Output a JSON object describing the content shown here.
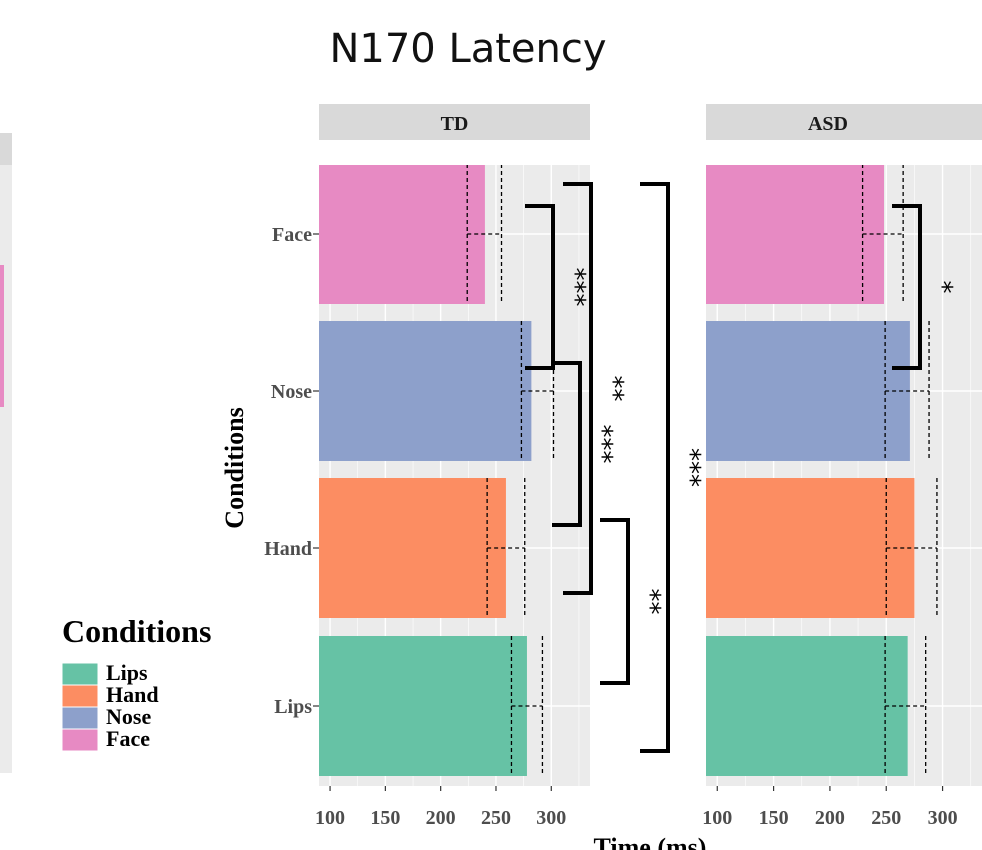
{
  "chart_data": {
    "type": "bar",
    "title": "N170 Latency",
    "xlabel": "Time (ms)",
    "ylabel": "Conditions",
    "xlim": [
      90,
      335
    ],
    "x_ticks": [
      "100",
      "150",
      "200",
      "250",
      "300"
    ],
    "categories": [
      "Face",
      "Nose",
      "Hand",
      "Lips"
    ],
    "legend": {
      "title": "Conditions",
      "placement": "left",
      "entries": [
        {
          "label": "Lips",
          "color": "#66c2a5"
        },
        {
          "label": "Hand",
          "color": "#fc8d62"
        },
        {
          "label": "Nose",
          "color": "#8da0cb"
        },
        {
          "label": "Face",
          "color": "#e78ac3"
        }
      ]
    },
    "colors": {
      "Face": "#e78ac3",
      "Nose": "#8da0cb",
      "Hand": "#fc8d62",
      "Lips": "#66c2a5"
    },
    "panels": [
      {
        "label": "TD",
        "values": [
          240,
          282,
          259,
          278
        ],
        "ci_low": [
          224,
          273,
          242,
          264
        ],
        "ci_high": [
          255,
          302,
          276,
          292
        ],
        "significance": [
          {
            "from": "Face",
            "to": "Nose",
            "stars": "***"
          },
          {
            "from": "Nose",
            "to": "Hand",
            "stars": "***"
          },
          {
            "from": "Hand",
            "to": "Lips",
            "stars": "**"
          },
          {
            "from": "Face",
            "to": "Lips",
            "stars": "***"
          },
          {
            "from": "Face",
            "to": "Hand",
            "stars": "**"
          }
        ]
      },
      {
        "label": "ASD",
        "values": [
          248,
          271,
          275,
          269
        ],
        "ci_low": [
          229,
          249,
          250,
          249
        ],
        "ci_high": [
          265,
          288,
          295,
          285
        ],
        "significance": [
          {
            "from": "Face",
            "to": "Nose",
            "stars": "*"
          }
        ]
      }
    ],
    "grid": true
  }
}
